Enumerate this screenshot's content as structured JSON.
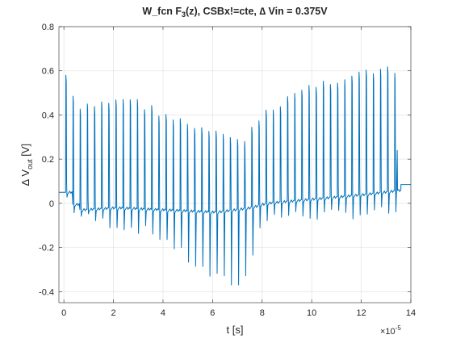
{
  "chart_data": {
    "type": "line",
    "title": "W_fcn F₃(z), CSBx!=cte, ∆ Vin = 0.375V",
    "title_parts": {
      "prefix": "W_fcn F",
      "subscript": "3",
      "suffix": "(z), CSBx!=cte, ∆ Vin = 0.375V"
    },
    "xlabel": "t [s]",
    "ylabel": "∆ V_out [V]",
    "ylabel_parts": {
      "prefix": "∆ V",
      "subscript": "out",
      "suffix": " [V]"
    },
    "x_exponent_label": "×10",
    "x_exponent": "-5",
    "x_scale": 1e-05,
    "xlim": [
      -0.2,
      14
    ],
    "ylim": [
      -0.45,
      0.8
    ],
    "x_ticks": [
      0,
      2,
      4,
      6,
      8,
      10,
      12,
      14
    ],
    "x_tick_labels": [
      "0",
      "2",
      "4",
      "6",
      "8",
      "10",
      "12",
      "14"
    ],
    "y_ticks": [
      -0.4,
      -0.2,
      0,
      0.2,
      0.4,
      0.6,
      0.8
    ],
    "y_tick_labels": [
      "-0.4",
      "-0.2",
      "0",
      "0.2",
      "0.4",
      "0.6",
      "0.8"
    ],
    "grid": true,
    "series_color": "#0072BD",
    "pulse_period": 0.2885,
    "pulse_start": 0.08,
    "pulse_end": 13.5,
    "baseline_points": [
      [
        -0.2,
        0.05
      ],
      [
        0.08,
        0.05
      ],
      [
        0.5,
        -0.03
      ],
      [
        2.0,
        -0.02
      ],
      [
        4.0,
        -0.03
      ],
      [
        6.0,
        -0.04
      ],
      [
        7.4,
        -0.02
      ],
      [
        8.0,
        0.0
      ],
      [
        10.0,
        0.02
      ],
      [
        12.0,
        0.04
      ],
      [
        13.5,
        0.06
      ],
      [
        13.6,
        0.085
      ],
      [
        14.0,
        0.085
      ]
    ],
    "peak_points": [
      [
        0.08,
        0.6
      ],
      [
        0.5,
        0.44
      ],
      [
        1.5,
        0.47
      ],
      [
        2.5,
        0.5
      ],
      [
        3.5,
        0.45
      ],
      [
        4.5,
        0.4
      ],
      [
        5.5,
        0.35
      ],
      [
        6.5,
        0.32
      ],
      [
        7.3,
        0.31
      ],
      [
        8.0,
        0.41
      ],
      [
        9.0,
        0.5
      ],
      [
        10.0,
        0.55
      ],
      [
        11.0,
        0.58
      ],
      [
        12.0,
        0.61
      ],
      [
        13.0,
        0.62
      ],
      [
        13.5,
        0.61
      ]
    ],
    "trough_points": [
      [
        0.08,
        0.0
      ],
      [
        0.5,
        -0.08
      ],
      [
        2.0,
        -0.12
      ],
      [
        3.0,
        -0.14
      ],
      [
        4.0,
        -0.18
      ],
      [
        5.0,
        -0.28
      ],
      [
        6.0,
        -0.36
      ],
      [
        7.0,
        -0.39
      ],
      [
        7.4,
        -0.35
      ],
      [
        7.8,
        -0.12
      ],
      [
        8.5,
        -0.08
      ],
      [
        10.0,
        -0.08
      ],
      [
        12.0,
        -0.07
      ],
      [
        13.5,
        -0.06
      ]
    ],
    "plateau_level_after_x": 12.8,
    "plateau_level": 0.24
  }
}
